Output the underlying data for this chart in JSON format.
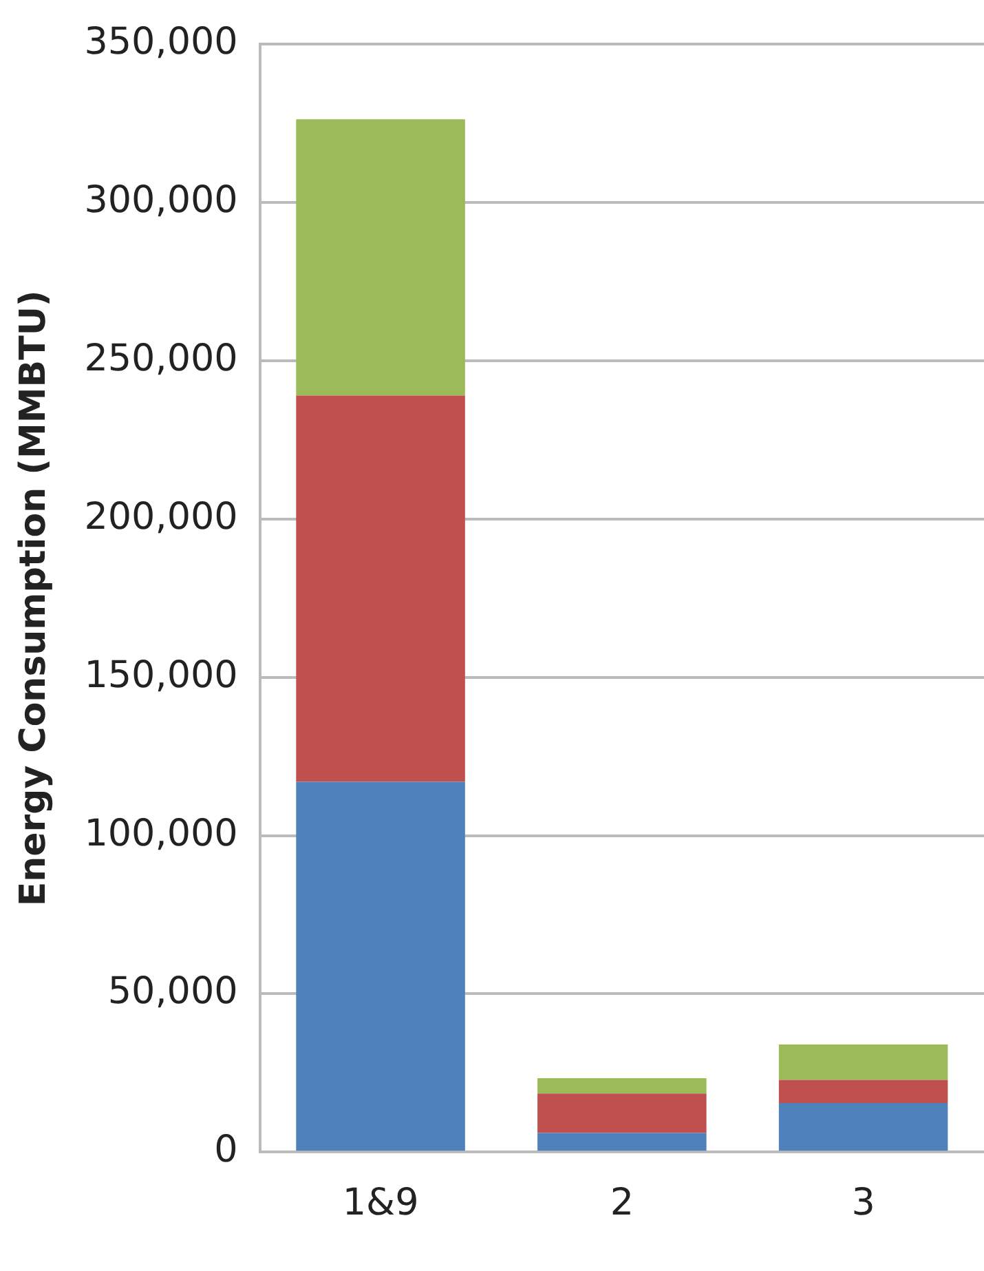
{
  "chart_data": {
    "type": "bar",
    "stacked": true,
    "ylabel": "Energy Consumption (MMBTU)",
    "categories": [
      "1&9",
      "2",
      "3"
    ],
    "series": [
      {
        "color": "#4f81bd",
        "values": [
          117000,
          6000,
          15500
        ]
      },
      {
        "color": "#c0504d",
        "values": [
          122000,
          12500,
          7300
        ]
      },
      {
        "color": "#9bbb59",
        "values": [
          87300,
          4800,
          11200
        ]
      }
    ],
    "ylim": [
      0,
      350000
    ],
    "yticks": [
      {
        "value": 0,
        "label": "0"
      },
      {
        "value": 50000,
        "label": "50,000"
      },
      {
        "value": 100000,
        "label": "100,000"
      },
      {
        "value": 150000,
        "label": "150,000"
      },
      {
        "value": 200000,
        "label": "200,000"
      },
      {
        "value": 250000,
        "label": "250,000"
      },
      {
        "value": 300000,
        "label": "300,000"
      },
      {
        "value": 350000,
        "label": "350,000"
      }
    ],
    "grid": "y",
    "legend": false
  }
}
